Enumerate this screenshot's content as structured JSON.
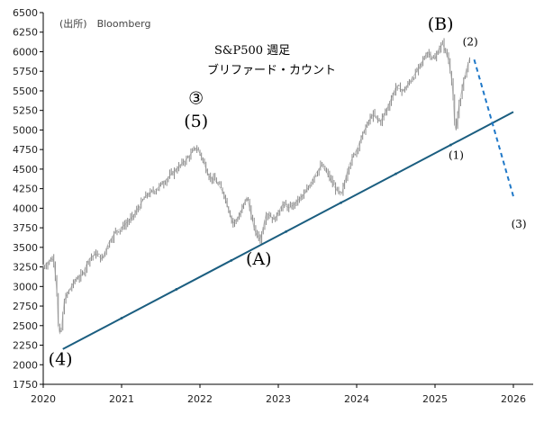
{
  "source_label": "(出所)　Bloomberg",
  "title_line1": "S&P500 週足",
  "title_line2": "ブリファード・カウント",
  "colors": {
    "price": "#8a8a8a",
    "trendline": "#1b5e80",
    "projection": "#1f78c8"
  },
  "chart_data": {
    "type": "line",
    "title": "S&P500 週足",
    "subtitle": "ブリファード・カウント",
    "xlim": [
      2020,
      2026
    ],
    "ylim": [
      1750,
      6500
    ],
    "x_ticks": [
      "2020",
      "2021",
      "2022",
      "2023",
      "2024",
      "2025",
      "2026"
    ],
    "y_ticks": [
      "6500",
      "6250",
      "6000",
      "5750",
      "5500",
      "5250",
      "5000",
      "4750",
      "4500",
      "4250",
      "4000",
      "3750",
      "3500",
      "3250",
      "3000",
      "2750",
      "2500",
      "2250",
      "2000",
      "1750"
    ],
    "grid": false,
    "series": [
      {
        "name": "",
        "style": "weekly-bars",
        "x": [
          2020.0,
          2020.08,
          2020.13,
          2020.17,
          2020.19,
          2020.22,
          2020.27,
          2020.33,
          2020.42,
          2020.5,
          2020.58,
          2020.67,
          2020.75,
          2020.83,
          2020.92,
          2021.0,
          2021.15,
          2021.3,
          2021.45,
          2021.6,
          2021.75,
          2021.85,
          2021.95,
          2022.0,
          2022.12,
          2022.2,
          2022.3,
          2022.42,
          2022.5,
          2022.6,
          2022.7,
          2022.77,
          2022.85,
          2022.95,
          2023.05,
          2023.15,
          2023.25,
          2023.35,
          2023.45,
          2023.55,
          2023.62,
          2023.7,
          2023.8,
          2023.9,
          2024.0,
          2024.1,
          2024.2,
          2024.3,
          2024.4,
          2024.5,
          2024.6,
          2024.7,
          2024.8,
          2024.9,
          2025.0,
          2025.05,
          2025.1,
          2025.17,
          2025.22,
          2025.26,
          2025.3,
          2025.38,
          2025.45
        ],
        "values": [
          3250,
          3330,
          3370,
          3000,
          2500,
          2350,
          2830,
          2950,
          3100,
          3150,
          3350,
          3420,
          3350,
          3550,
          3700,
          3750,
          3900,
          4150,
          4250,
          4400,
          4550,
          4650,
          4780,
          4700,
          4400,
          4350,
          4200,
          3800,
          3900,
          4150,
          3700,
          3600,
          3950,
          3850,
          4050,
          4000,
          4100,
          4200,
          4400,
          4550,
          4450,
          4300,
          4150,
          4550,
          4750,
          5000,
          5200,
          5100,
          5300,
          5550,
          5500,
          5650,
          5800,
          6000,
          5900,
          6050,
          6100,
          5900,
          5600,
          4900,
          5300,
          5700,
          5950
        ]
      },
      {
        "name": "",
        "style": "trendline",
        "x": [
          2020.25,
          2026.0
        ],
        "values": [
          2200,
          5230
        ]
      },
      {
        "name": "",
        "style": "projection-dashed",
        "x": [
          2025.5,
          2026.0
        ],
        "values": [
          5900,
          4150
        ]
      }
    ],
    "annotations": [
      {
        "text": "(4)",
        "x": 2020.22,
        "y": 2000,
        "size": "big"
      },
      {
        "text": "③",
        "x": 2021.95,
        "y": 5330,
        "size": "big"
      },
      {
        "text": "(5)",
        "x": 2021.95,
        "y": 5040,
        "size": "big"
      },
      {
        "text": "(A)",
        "x": 2022.75,
        "y": 3280,
        "size": "big"
      },
      {
        "text": "(B)",
        "x": 2025.07,
        "y": 6280,
        "size": "big"
      },
      {
        "text": "(2)",
        "x": 2025.45,
        "y": 6080,
        "size": "small"
      },
      {
        "text": "(1)",
        "x": 2025.27,
        "y": 4630,
        "size": "small"
      },
      {
        "text": "(3)",
        "x": 2026.07,
        "y": 3750,
        "size": "small"
      }
    ]
  }
}
